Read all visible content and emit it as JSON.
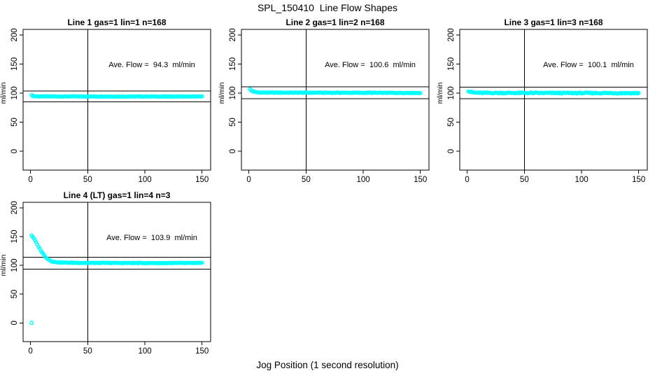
{
  "chart_data": {
    "type": "scatter",
    "title": "SPL_150410  Line Flow Shapes",
    "xlabel": "Jog Position (1 second resolution)",
    "ylabel": "ml/min",
    "x_ticks": [
      0,
      50,
      100,
      150
    ],
    "y_ticks": [
      0,
      50,
      100,
      150,
      200
    ],
    "xlim": [
      -6.5,
      157.5
    ],
    "ylim": [
      -32.5,
      209.5
    ],
    "vline_x": 50,
    "grid": false,
    "legend": "none",
    "point_color": "#00ffff",
    "axis_color": "#000000",
    "marker": "open-circle",
    "panels": [
      {
        "title": "Line 1 gas=1 lin=1 n=168",
        "line": 1,
        "gas": 1,
        "lin": 1,
        "n": 168,
        "ave_flow": 94.3,
        "annotation": "Ave. Flow =  94.3  ml/min",
        "band_lines": [
          103.7,
          84.9
        ],
        "profile": [
          [
            1,
            96.5
          ],
          [
            2,
            95.2
          ],
          [
            4,
            94.5
          ],
          [
            10,
            94.2
          ],
          [
            150,
            94.0
          ]
        ],
        "noise": 0.5,
        "n_points": 150,
        "outliers": []
      },
      {
        "title": "Line 2 gas=1 lin=2 n=168",
        "line": 2,
        "gas": 1,
        "lin": 2,
        "n": 168,
        "ave_flow": 100.6,
        "annotation": "Ave. Flow =  100.6  ml/min",
        "band_lines": [
          110.7,
          90.5
        ],
        "profile": [
          [
            1,
            106.5
          ],
          [
            2,
            104.5
          ],
          [
            4,
            102.5
          ],
          [
            7,
            101.3
          ],
          [
            12,
            100.8
          ],
          [
            150,
            100.3
          ]
        ],
        "noise": 0.55,
        "n_points": 150,
        "outliers": []
      },
      {
        "title": "Line 3 gas=1 lin=3 n=168",
        "line": 3,
        "gas": 1,
        "lin": 3,
        "n": 168,
        "ave_flow": 100.1,
        "annotation": "Ave. Flow =  100.1  ml/min",
        "band_lines": [
          110.1,
          90.1
        ],
        "profile": [
          [
            1,
            103.5
          ],
          [
            3,
            101.8
          ],
          [
            6,
            100.8
          ],
          [
            12,
            100.3
          ],
          [
            150,
            99.9
          ]
        ],
        "noise": 0.95,
        "n_points": 150,
        "outliers": []
      },
      {
        "title": "Line 4 (LT) gas=1 lin=4 n=3",
        "line": 4,
        "lt": true,
        "gas": 1,
        "lin": 4,
        "n": 3,
        "ave_flow": 103.9,
        "annotation": "Ave. Flow =  103.9  ml/min",
        "band_lines": [
          114.3,
          93.5
        ],
        "profile": [
          [
            1,
            152
          ],
          [
            2,
            149.5
          ],
          [
            3,
            146.5
          ],
          [
            4,
            143
          ],
          [
            5,
            139.5
          ],
          [
            6,
            136
          ],
          [
            7,
            132.5
          ],
          [
            8,
            129
          ],
          [
            9,
            126
          ],
          [
            10,
            123
          ],
          [
            11,
            120
          ],
          [
            12,
            117.5
          ],
          [
            13,
            115
          ],
          [
            14,
            113
          ],
          [
            15,
            111.3
          ],
          [
            16,
            109.8
          ],
          [
            17,
            108.6
          ],
          [
            18,
            107.6
          ],
          [
            20,
            106.3
          ],
          [
            22,
            105.6
          ],
          [
            25,
            105.1
          ],
          [
            30,
            104.7
          ],
          [
            40,
            104.4
          ],
          [
            60,
            104.2
          ],
          [
            100,
            104.0
          ],
          [
            150,
            103.9
          ]
        ],
        "noise": 0.6,
        "n_points": 150,
        "outliers": [
          [
            1,
            0
          ]
        ]
      }
    ]
  }
}
